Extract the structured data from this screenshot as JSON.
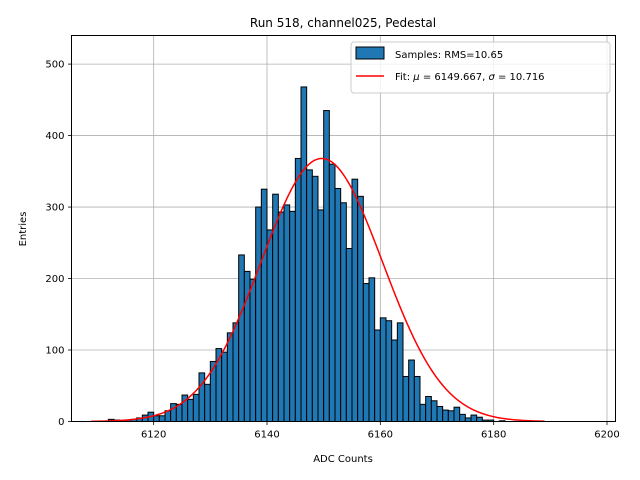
{
  "chart_data": {
    "type": "histogram",
    "title": "Run 518, channel025, Pedestal",
    "xlabel": "ADC Counts",
    "ylabel": "Entries",
    "xlim": [
      6105.5,
      6201.5
    ],
    "ylim": [
      0,
      540
    ],
    "xticks": [
      6120,
      6140,
      6160,
      6180,
      6200
    ],
    "yticks": [
      0,
      100,
      200,
      300,
      400,
      500
    ],
    "grid": true,
    "bin_width": 1,
    "bar_color": "#1f77b4",
    "fit_color": "#ff0000",
    "series": [
      {
        "name": "Samples: RMS=10.65",
        "kind": "bars",
        "bin_start": 6112,
        "values": [
          3,
          2,
          0,
          2,
          3,
          5,
          9,
          13,
          8,
          8,
          15,
          25,
          24,
          37,
          31,
          38,
          68,
          52,
          84,
          102,
          97,
          124,
          138,
          233,
          210,
          199,
          300,
          325,
          268,
          318,
          293,
          303,
          294,
          368,
          468,
          352,
          343,
          296,
          435,
          360,
          326,
          306,
          242,
          339,
          315,
          193,
          201,
          128,
          145,
          141,
          114,
          138,
          63,
          86,
          63,
          24,
          35,
          29,
          21,
          16,
          15,
          20,
          10,
          5,
          9,
          6,
          2,
          2,
          0,
          1
        ]
      },
      {
        "name": "Fit: μ = 6149.667, σ = 10.716",
        "kind": "gaussian",
        "mu": 6149.667,
        "sigma": 10.716,
        "amplitude": 368,
        "x_range": [
          6109,
          6189
        ]
      }
    ],
    "legend": {
      "position": "top-right",
      "entries": [
        "Samples: RMS=10.65",
        "Fit: μ = 6149.667, σ = 10.716"
      ]
    }
  }
}
